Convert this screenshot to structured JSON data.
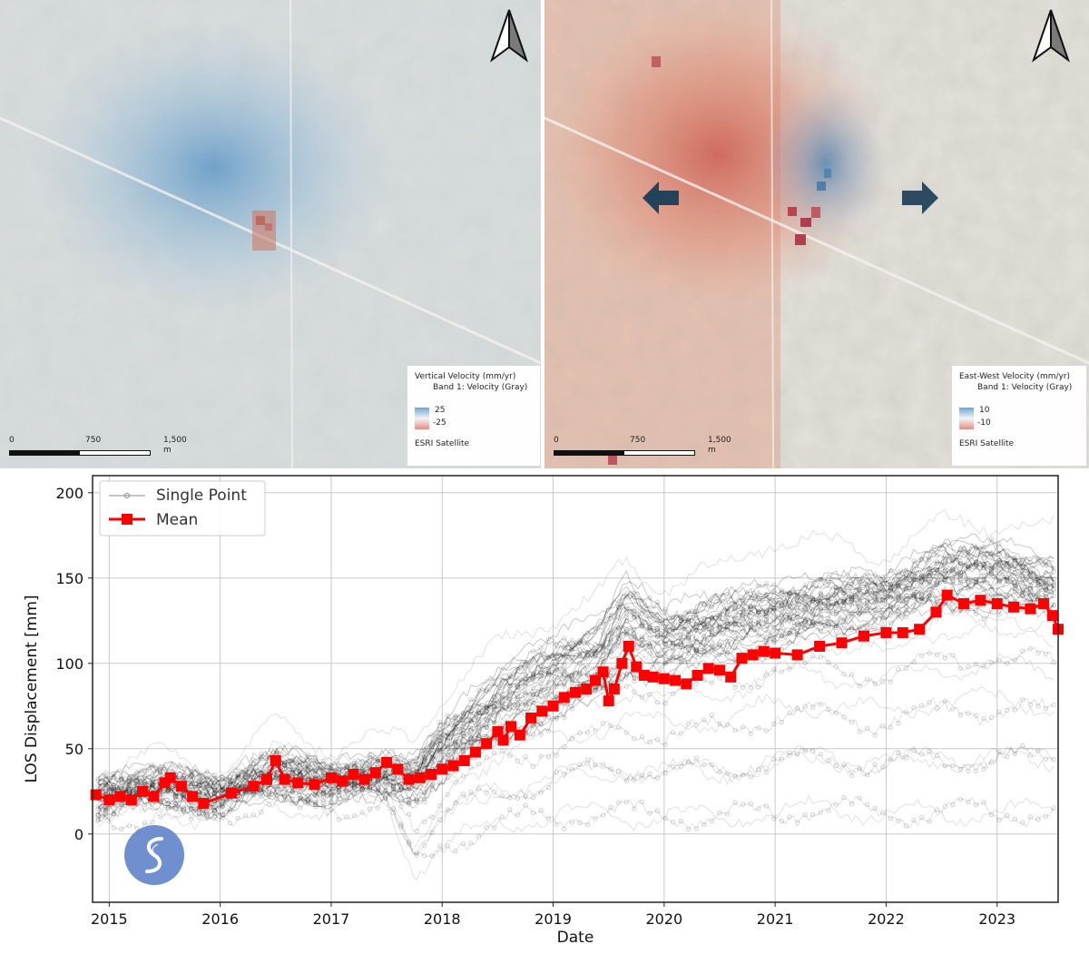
{
  "maps": {
    "vertical": {
      "legend_title": "Vertical Velocity (mm/yr)",
      "legend_band": "Band 1: Velocity (Gray)",
      "legend_max": "25",
      "legend_min": "-25",
      "basemap": "ESRI Satellite",
      "scale_labels": [
        "0",
        "750",
        "1,500 m"
      ]
    },
    "eastwest": {
      "legend_title": "East-West Velocity (mm/yr)",
      "legend_band": "Band 1: Velocity (Gray)",
      "legend_max": "10",
      "legend_min": "-10",
      "basemap": "ESRI Satellite",
      "scale_labels": [
        "0",
        "750",
        "1,500 m"
      ]
    },
    "colors": {
      "positive": "#4a86b8",
      "negative": "#d9584a",
      "terrain": "#e6e2da"
    },
    "icons": [
      "north-arrow-icon",
      "west-arrow-icon",
      "east-arrow-icon"
    ]
  },
  "chart_data": {
    "type": "line",
    "xlabel": "Date",
    "ylabel": "LOS Displacement [mm]",
    "xlim": [
      2014.85,
      2023.55
    ],
    "ylim": [
      -40,
      210
    ],
    "x_ticks": [
      "2015",
      "2016",
      "2017",
      "2018",
      "2019",
      "2020",
      "2021",
      "2022",
      "2023"
    ],
    "y_ticks": [
      "0",
      "50",
      "100",
      "150",
      "200"
    ],
    "grid": true,
    "legend_position": "top-left",
    "series": [
      {
        "name": "Single Point",
        "color": "#000000",
        "style": "thin gray lines with circle markers, many overlapping points",
        "envelope": {
          "x": [
            2014.9,
            2015.5,
            2016.0,
            2016.5,
            2017.0,
            2017.5,
            2017.75,
            2018.0,
            2018.5,
            2019.0,
            2019.4,
            2019.65,
            2020.0,
            2020.5,
            2021.0,
            2021.5,
            2022.0,
            2022.5,
            2023.0,
            2023.5
          ],
          "low": [
            5,
            10,
            8,
            15,
            10,
            15,
            -25,
            -15,
            0,
            0,
            5,
            0,
            0,
            0,
            0,
            5,
            0,
            0,
            0,
            0
          ],
          "high": [
            45,
            50,
            40,
            70,
            55,
            60,
            65,
            90,
            120,
            140,
            150,
            175,
            160,
            170,
            190,
            185,
            180,
            200,
            200,
            195
          ],
          "core_low": [
            15,
            20,
            15,
            25,
            22,
            25,
            25,
            35,
            55,
            70,
            80,
            95,
            95,
            105,
            110,
            120,
            125,
            135,
            135,
            130
          ],
          "core_high": [
            30,
            38,
            30,
            48,
            38,
            45,
            40,
            65,
            95,
            115,
            125,
            150,
            130,
            140,
            145,
            150,
            150,
            170,
            170,
            160
          ]
        }
      },
      {
        "name": "Mean",
        "color": "#ff0000",
        "marker": "square",
        "x": [
          2014.88,
          2015.0,
          2015.1,
          2015.2,
          2015.3,
          2015.4,
          2015.5,
          2015.55,
          2015.65,
          2015.75,
          2015.85,
          2016.1,
          2016.3,
          2016.42,
          2016.5,
          2016.58,
          2016.7,
          2016.85,
          2017.0,
          2017.1,
          2017.2,
          2017.3,
          2017.4,
          2017.5,
          2017.6,
          2017.7,
          2017.8,
          2017.9,
          2018.0,
          2018.1,
          2018.2,
          2018.3,
          2018.4,
          2018.5,
          2018.55,
          2018.62,
          2018.7,
          2018.8,
          2018.9,
          2019.0,
          2019.1,
          2019.2,
          2019.3,
          2019.38,
          2019.45,
          2019.5,
          2019.55,
          2019.62,
          2019.68,
          2019.75,
          2019.82,
          2019.9,
          2020.0,
          2020.1,
          2020.2,
          2020.3,
          2020.4,
          2020.5,
          2020.6,
          2020.7,
          2020.8,
          2020.9,
          2021.0,
          2021.2,
          2021.4,
          2021.6,
          2021.8,
          2022.0,
          2022.15,
          2022.3,
          2022.45,
          2022.55,
          2022.7,
          2022.85,
          2023.0,
          2023.15,
          2023.3,
          2023.42,
          2023.5,
          2023.55
        ],
        "y": [
          23,
          20,
          22,
          20,
          25,
          22,
          30,
          33,
          28,
          22,
          18,
          24,
          28,
          32,
          43,
          32,
          30,
          29,
          33,
          31,
          35,
          32,
          36,
          42,
          38,
          32,
          33,
          35,
          38,
          40,
          43,
          48,
          53,
          60,
          55,
          63,
          58,
          68,
          72,
          75,
          80,
          83,
          85,
          90,
          95,
          78,
          85,
          100,
          110,
          98,
          93,
          92,
          91,
          90,
          88,
          93,
          97,
          96,
          92,
          103,
          105,
          107,
          106,
          105,
          110,
          112,
          116,
          118,
          118,
          120,
          130,
          140,
          135,
          137,
          135,
          133,
          132,
          135,
          128,
          120
        ]
      }
    ]
  }
}
